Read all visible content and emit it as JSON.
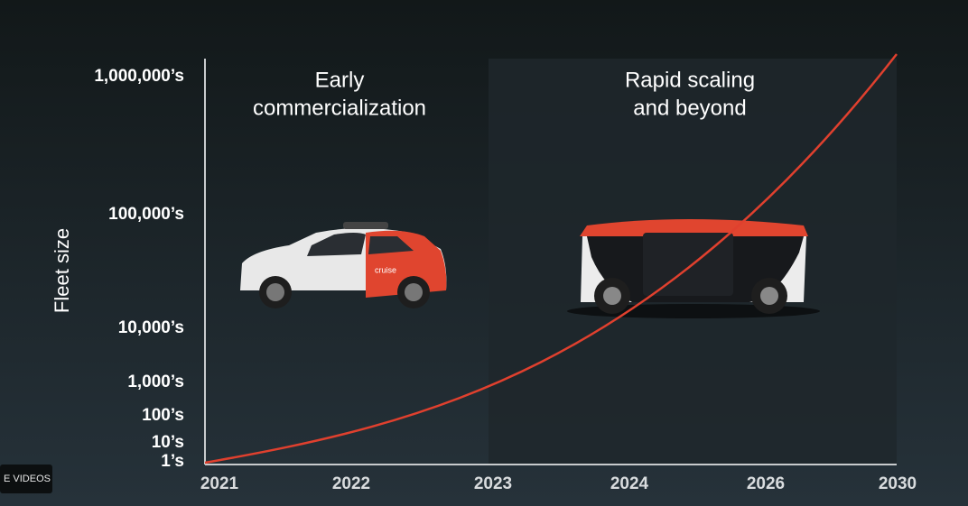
{
  "slide": {
    "y_axis_label": "Fleet size",
    "y_labels": [
      "1,000,000’s",
      "100,000’s",
      "10,000’s",
      "1,000’s",
      "100’s",
      "10’s",
      "1’s"
    ],
    "x_labels": [
      "2021",
      "2022",
      "2023",
      "2024",
      "2026",
      "2030"
    ],
    "regions": [
      {
        "title_lines": [
          "Early",
          "commercialization"
        ]
      },
      {
        "title_lines": [
          "Rapid scaling",
          "and beyond"
        ]
      }
    ],
    "car_logo": "cruise",
    "badge": "E VIDEOS"
  }
}
